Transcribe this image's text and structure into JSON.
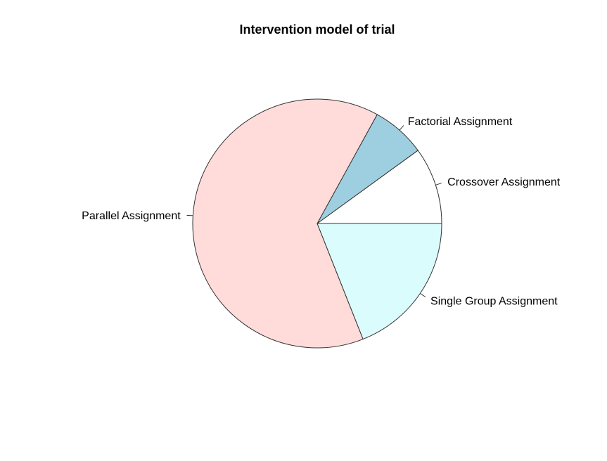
{
  "chart_data": {
    "type": "pie",
    "title": "Intervention model of trial",
    "start_angle_deg": 0,
    "direction": "counterclockwise",
    "slices": [
      {
        "label": "Crossover Assignment",
        "value": 10,
        "color": "#ffffff"
      },
      {
        "label": "Factorial Assignment",
        "value": 7,
        "color": "#9ecfe0"
      },
      {
        "label": "Parallel Assignment",
        "value": 64,
        "color": "#ffdcda"
      },
      {
        "label": "Single Group Assignment",
        "value": 19,
        "color": "#dbfcfc"
      }
    ]
  }
}
